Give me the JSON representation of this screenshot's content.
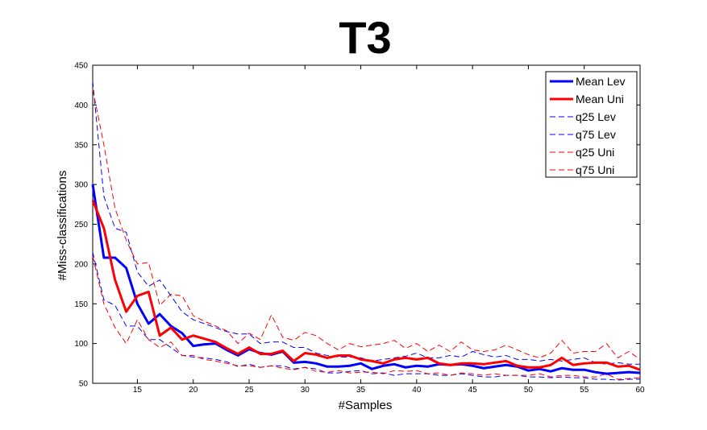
{
  "chart_data": {
    "type": "line",
    "title": "T3",
    "xlabel": "#Samples",
    "ylabel": "#Miss-classifications",
    "xlim": [
      11,
      60
    ],
    "ylim": [
      50,
      450
    ],
    "xticks": [
      15,
      20,
      25,
      30,
      35,
      40,
      45,
      50,
      55,
      60
    ],
    "yticks": [
      50,
      100,
      150,
      200,
      250,
      300,
      350,
      400,
      450
    ],
    "grid": false,
    "legend_position": "top-right",
    "x": [
      11,
      12,
      13,
      14,
      15,
      16,
      17,
      18,
      19,
      20,
      21,
      22,
      23,
      24,
      25,
      26,
      27,
      28,
      29,
      30,
      31,
      32,
      33,
      34,
      35,
      36,
      37,
      38,
      39,
      40,
      41,
      42,
      43,
      44,
      45,
      46,
      47,
      48,
      49,
      50,
      51,
      52,
      53,
      54,
      55,
      56,
      57,
      58,
      59,
      60
    ],
    "series": [
      {
        "name": "Mean Lev",
        "color": "#0000ff",
        "style": "solid",
        "width": 3,
        "values": [
          300,
          208,
          208,
          195,
          150,
          125,
          137,
          122,
          113,
          97,
          99,
          100,
          92,
          85,
          93,
          88,
          86,
          90,
          76,
          77,
          75,
          71,
          71,
          72,
          75,
          68,
          72,
          74,
          70,
          72,
          71,
          74,
          73,
          74,
          72,
          69,
          71,
          73,
          71,
          66,
          68,
          65,
          69,
          67,
          67,
          64,
          62,
          63,
          64,
          63
        ]
      },
      {
        "name": "Mean Uni",
        "color": "#ff0000",
        "style": "solid",
        "width": 3,
        "values": [
          280,
          245,
          180,
          140,
          160,
          165,
          110,
          120,
          105,
          110,
          106,
          102,
          94,
          87,
          95,
          87,
          87,
          91,
          78,
          88,
          86,
          82,
          85,
          85,
          80,
          78,
          75,
          80,
          82,
          80,
          82,
          75,
          73,
          75,
          75,
          74,
          76,
          78,
          72,
          70,
          70,
          73,
          82,
          73,
          75,
          76,
          76,
          71,
          72,
          67
        ]
      },
      {
        "name": "q25 Lev",
        "color": "#0000ff",
        "style": "dashed",
        "width": 1,
        "values": [
          215,
          155,
          148,
          122,
          122,
          105,
          105,
          95,
          85,
          83,
          82,
          80,
          77,
          71,
          74,
          70,
          72,
          72,
          68,
          70,
          68,
          63,
          63,
          65,
          66,
          62,
          63,
          60,
          62,
          62,
          62,
          60,
          60,
          62,
          60,
          58,
          58,
          60,
          60,
          58,
          58,
          57,
          58,
          57,
          57,
          55,
          55,
          54,
          55,
          55
        ]
      },
      {
        "name": "q75 Lev",
        "color": "#0000ff",
        "style": "dashed",
        "width": 1,
        "values": [
          430,
          285,
          245,
          240,
          190,
          172,
          180,
          160,
          140,
          130,
          125,
          120,
          115,
          112,
          112,
          100,
          102,
          102,
          95,
          95,
          88,
          85,
          83,
          83,
          82,
          78,
          80,
          82,
          84,
          88,
          82,
          82,
          85,
          83,
          90,
          86,
          83,
          85,
          80,
          80,
          78,
          80,
          78,
          80,
          82,
          76,
          74,
          76,
          74,
          74
        ]
      },
      {
        "name": "q25 Uni",
        "color": "#ff0000",
        "style": "dashed",
        "width": 1,
        "values": [
          210,
          150,
          120,
          100,
          130,
          105,
          95,
          102,
          85,
          85,
          80,
          78,
          75,
          72,
          72,
          70,
          72,
          69,
          67,
          70,
          65,
          64,
          66,
          63,
          64,
          64,
          62,
          66,
          65,
          66,
          62,
          63,
          60,
          63,
          62,
          60,
          62,
          60,
          60,
          60,
          62,
          58,
          60,
          60,
          58,
          58,
          62,
          55,
          56,
          57
        ]
      },
      {
        "name": "q75 Uni",
        "color": "#ff0000",
        "style": "dashed",
        "width": 1,
        "values": [
          420,
          350,
          270,
          230,
          200,
          202,
          148,
          162,
          160,
          135,
          128,
          122,
          116,
          100,
          113,
          105,
          136,
          108,
          104,
          114,
          110,
          100,
          92,
          100,
          96,
          98,
          100,
          104,
          94,
          100,
          90,
          98,
          90,
          102,
          92,
          90,
          92,
          98,
          92,
          86,
          82,
          88,
          104,
          88,
          90,
          90,
          100,
          82,
          90,
          80
        ]
      }
    ]
  }
}
